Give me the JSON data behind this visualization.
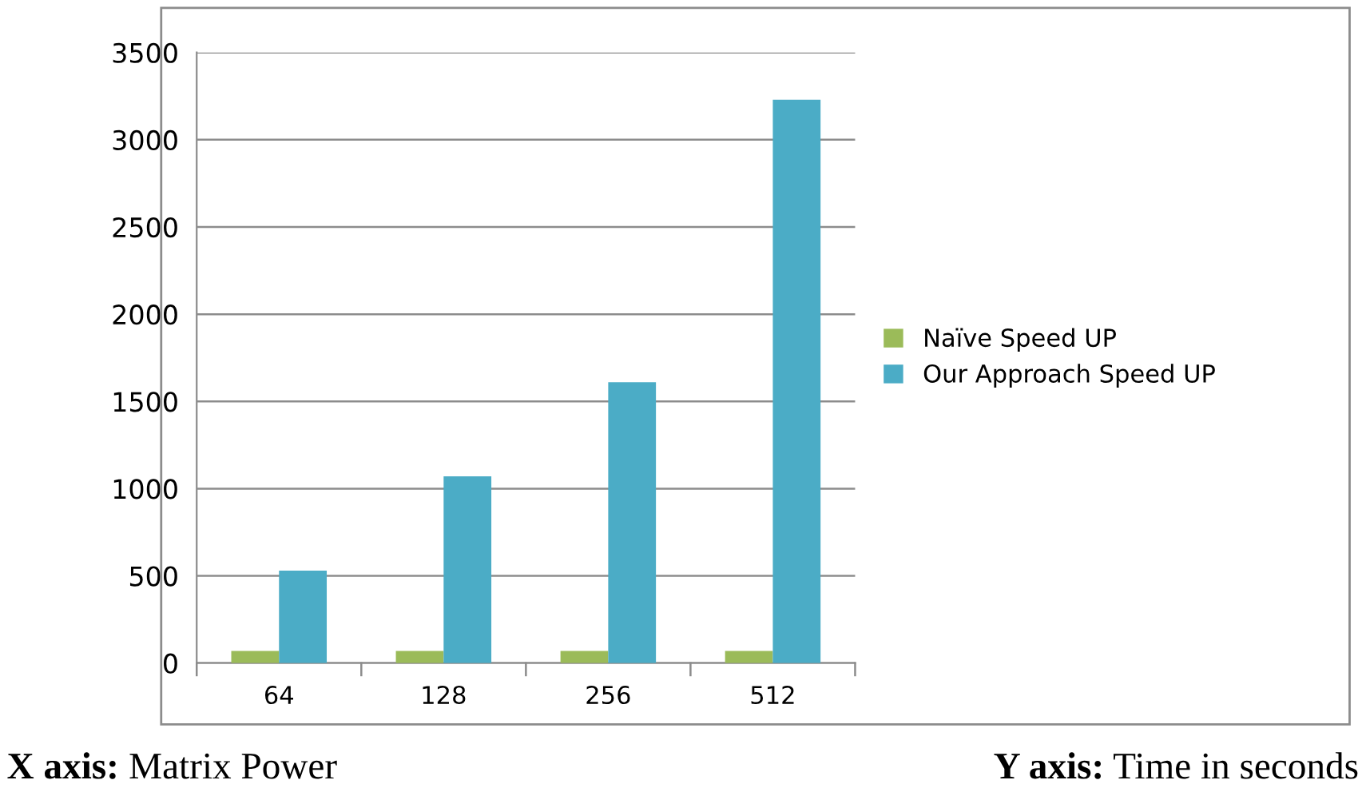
{
  "chart_data": {
    "type": "bar",
    "categories": [
      "64",
      "128",
      "256",
      "512"
    ],
    "series": [
      {
        "name": "Naïve Speed UP",
        "color": "#9bbb59",
        "values": [
          70,
          70,
          70,
          70
        ]
      },
      {
        "name": "Our Approach Speed UP",
        "color": "#4bacc6",
        "values": [
          530,
          1070,
          1610,
          3230
        ]
      }
    ],
    "ylim": [
      0,
      3500
    ],
    "yticks": [
      0,
      500,
      1000,
      1500,
      2000,
      2500,
      3000,
      3500
    ],
    "grid": "y",
    "legend": "right",
    "annotations": [
      "X axis: Matrix Power",
      "Y axis: Time in seconds"
    ]
  }
}
